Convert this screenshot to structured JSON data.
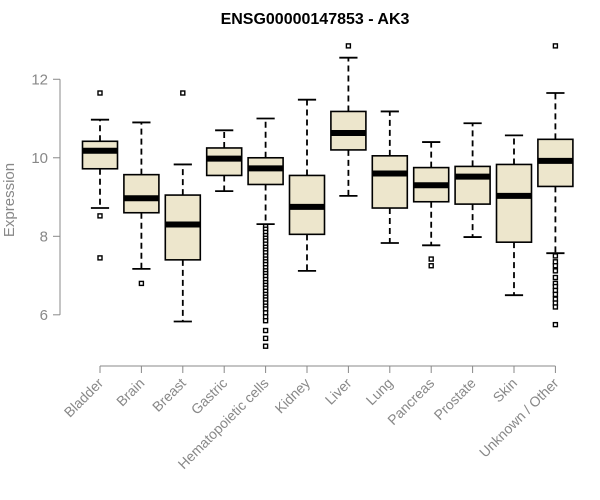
{
  "chart_data": {
    "type": "box",
    "title": "ENSG00000147853 - AK3",
    "xlabel": "",
    "ylabel": "Expression",
    "ylim": [
      4.9,
      13.0
    ],
    "yticks": [
      6,
      8,
      10,
      12
    ],
    "grid": false,
    "legend": "none",
    "colors": {
      "box_fill": "#ede6cc",
      "axis": "#888888",
      "line": "#000000"
    },
    "categories": [
      "Bladder",
      "Brain",
      "Breast",
      "Gastric",
      "Hematopoietic cells",
      "Kidney",
      "Liver",
      "Lung",
      "Pancreas",
      "Prostate",
      "Skin",
      "Unknown / Other"
    ],
    "boxes": [
      {
        "category": "Bladder",
        "whisker_low": 8.72,
        "q1": 9.72,
        "median": 10.18,
        "q3": 10.42,
        "whisker_high": 10.97,
        "outliers": [
          11.65,
          8.52,
          7.45
        ]
      },
      {
        "category": "Brain",
        "whisker_low": 7.17,
        "q1": 8.6,
        "median": 8.97,
        "q3": 9.57,
        "whisker_high": 10.9,
        "outliers": [
          6.8
        ]
      },
      {
        "category": "Breast",
        "whisker_low": 5.83,
        "q1": 7.4,
        "median": 8.3,
        "q3": 9.05,
        "whisker_high": 9.83,
        "outliers": [
          11.65
        ]
      },
      {
        "category": "Gastric",
        "whisker_low": 9.15,
        "q1": 9.55,
        "median": 9.98,
        "q3": 10.25,
        "whisker_high": 10.7,
        "outliers": []
      },
      {
        "category": "Hematopoietic cells",
        "whisker_low": 8.31,
        "q1": 9.32,
        "median": 9.73,
        "q3": 10.0,
        "whisker_high": 11.0,
        "outliers": [
          8.25,
          8.18,
          8.1,
          8.02,
          7.95,
          7.88,
          7.8,
          7.72,
          7.65,
          7.58,
          7.5,
          7.42,
          7.35,
          7.28,
          7.2,
          7.12,
          7.05,
          6.98,
          6.9,
          6.82,
          6.75,
          6.68,
          6.6,
          6.52,
          6.45,
          6.38,
          6.3,
          6.22,
          6.15,
          6.05,
          5.95,
          5.85,
          5.6,
          5.4,
          5.2
        ]
      },
      {
        "category": "Kidney",
        "whisker_low": 7.12,
        "q1": 8.05,
        "median": 8.75,
        "q3": 9.55,
        "whisker_high": 11.48,
        "outliers": []
      },
      {
        "category": "Liver",
        "whisker_low": 9.03,
        "q1": 10.2,
        "median": 10.63,
        "q3": 11.18,
        "whisker_high": 12.55,
        "outliers": [
          12.85
        ]
      },
      {
        "category": "Lung",
        "whisker_low": 7.83,
        "q1": 8.72,
        "median": 9.6,
        "q3": 10.05,
        "whisker_high": 11.18,
        "outliers": []
      },
      {
        "category": "Pancreas",
        "whisker_low": 7.77,
        "q1": 8.88,
        "median": 9.3,
        "q3": 9.75,
        "whisker_high": 10.4,
        "outliers": [
          7.42,
          7.25
        ]
      },
      {
        "category": "Prostate",
        "whisker_low": 7.98,
        "q1": 8.82,
        "median": 9.52,
        "q3": 9.78,
        "whisker_high": 10.88,
        "outliers": []
      },
      {
        "category": "Skin",
        "whisker_low": 6.5,
        "q1": 7.85,
        "median": 9.03,
        "q3": 9.83,
        "whisker_high": 10.57,
        "outliers": []
      },
      {
        "category": "Unknown / Other",
        "whisker_low": 7.57,
        "q1": 9.27,
        "median": 9.92,
        "q3": 10.47,
        "whisker_high": 11.65,
        "outliers": [
          12.85,
          7.5,
          7.35,
          7.25,
          7.12,
          6.95,
          6.8,
          6.72,
          6.62,
          6.52,
          6.4,
          6.3,
          6.2,
          5.75
        ]
      }
    ]
  }
}
